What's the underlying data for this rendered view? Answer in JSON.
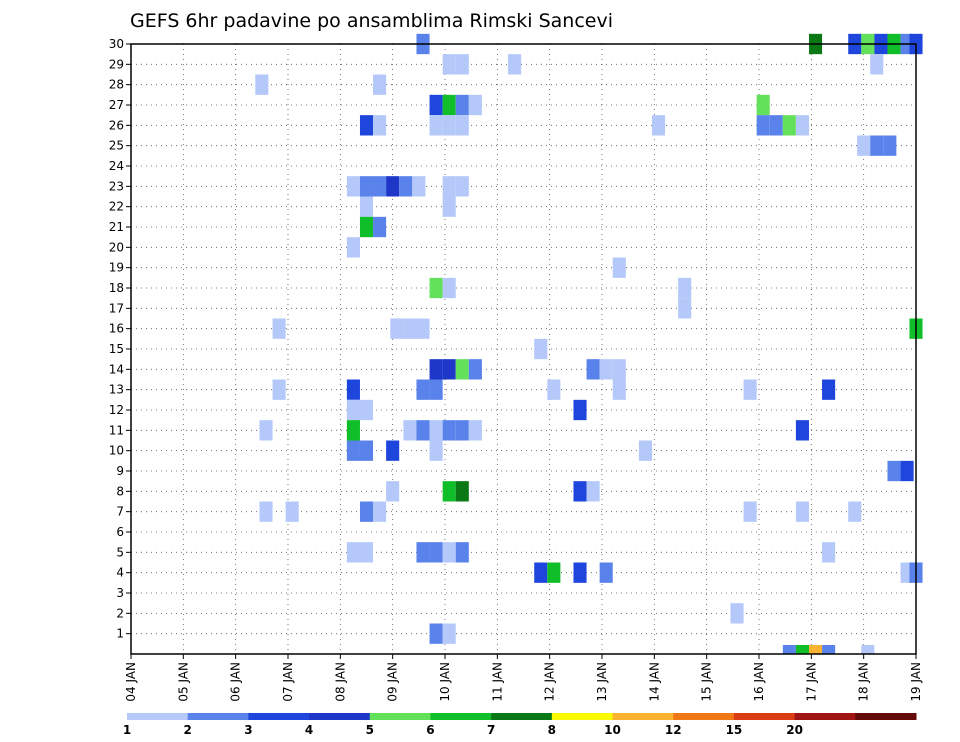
{
  "chart_data": {
    "type": "heatmap",
    "title": "GEFS 6hr padavine po ansamblima Rimski Sancevi",
    "y_ticks": [
      "1",
      "2",
      "3",
      "4",
      "5",
      "6",
      "7",
      "8",
      "9",
      "10",
      "11",
      "12",
      "13",
      "14",
      "15",
      "16",
      "17",
      "18",
      "19",
      "20",
      "21",
      "22",
      "23",
      "24",
      "25",
      "26",
      "27",
      "28",
      "29",
      "30"
    ],
    "x_ticks": [
      "04 JAN",
      "05 JAN",
      "06 JAN",
      "07 JAN",
      "08 JAN",
      "09 JAN",
      "10 JAN",
      "11 JAN",
      "12 JAN",
      "13 JAN",
      "14 JAN",
      "15 JAN",
      "16 JAN",
      "17 JAN",
      "18 JAN",
      "19 JAN"
    ],
    "x_range_days": [
      4,
      19
    ],
    "y_range": [
      0,
      30
    ],
    "grid": true,
    "colorbar": {
      "ticks": [
        "1",
        "2",
        "3",
        "4",
        "5",
        "6",
        "7",
        "8",
        "10",
        "12",
        "15",
        "20"
      ],
      "colors": [
        "#b4c8fa",
        "#5a82eb",
        "#1e46dc",
        "#1e37c8",
        "#64e15a",
        "#0fbe28",
        "#0a7814",
        "#fafa00",
        "#fab432",
        "#f07814",
        "#dc3c14",
        "#a01414",
        "#640a0a"
      ]
    },
    "cells": [
      {
        "day": 9.58,
        "member": 30,
        "level": 2
      },
      {
        "day": 17.83,
        "member": 30,
        "level": 3
      },
      {
        "day": 17.08,
        "member": 30,
        "level": 7
      },
      {
        "day": 18.08,
        "member": 30,
        "level": 5
      },
      {
        "day": 18.33,
        "member": 30,
        "level": 3
      },
      {
        "day": 18.58,
        "member": 30,
        "level": 6
      },
      {
        "day": 18.83,
        "member": 30,
        "level": 2
      },
      {
        "day": 19.0,
        "member": 30,
        "level": 3
      },
      {
        "day": 10.08,
        "member": 29,
        "level": 1
      },
      {
        "day": 10.33,
        "member": 29,
        "level": 1
      },
      {
        "day": 11.33,
        "member": 29,
        "level": 1
      },
      {
        "day": 18.25,
        "member": 29,
        "level": 1
      },
      {
        "day": 6.5,
        "member": 28,
        "level": 1
      },
      {
        "day": 8.75,
        "member": 28,
        "level": 1
      },
      {
        "day": 9.83,
        "member": 27,
        "level": 3
      },
      {
        "day": 10.08,
        "member": 27,
        "level": 6
      },
      {
        "day": 10.33,
        "member": 27,
        "level": 2
      },
      {
        "day": 10.58,
        "member": 27,
        "level": 1
      },
      {
        "day": 16.08,
        "member": 27,
        "level": 5
      },
      {
        "day": 8.5,
        "member": 26,
        "level": 3
      },
      {
        "day": 8.75,
        "member": 26,
        "level": 1
      },
      {
        "day": 9.83,
        "member": 26,
        "level": 1
      },
      {
        "day": 10.08,
        "member": 26,
        "level": 1
      },
      {
        "day": 10.33,
        "member": 26,
        "level": 1
      },
      {
        "day": 14.08,
        "member": 26,
        "level": 1
      },
      {
        "day": 16.08,
        "member": 26,
        "level": 2
      },
      {
        "day": 16.33,
        "member": 26,
        "level": 2
      },
      {
        "day": 16.58,
        "member": 26,
        "level": 5
      },
      {
        "day": 16.83,
        "member": 26,
        "level": 1
      },
      {
        "day": 18.0,
        "member": 25,
        "level": 1
      },
      {
        "day": 18.25,
        "member": 25,
        "level": 2
      },
      {
        "day": 18.5,
        "member": 25,
        "level": 2
      },
      {
        "day": 8.25,
        "member": 23,
        "level": 1
      },
      {
        "day": 8.5,
        "member": 23,
        "level": 2
      },
      {
        "day": 8.75,
        "member": 23,
        "level": 2
      },
      {
        "day": 9.0,
        "member": 23,
        "level": 4
      },
      {
        "day": 9.25,
        "member": 23,
        "level": 2
      },
      {
        "day": 9.5,
        "member": 23,
        "level": 1
      },
      {
        "day": 10.08,
        "member": 23,
        "level": 1
      },
      {
        "day": 10.33,
        "member": 23,
        "level": 1
      },
      {
        "day": 8.5,
        "member": 22,
        "level": 1
      },
      {
        "day": 10.08,
        "member": 22,
        "level": 1
      },
      {
        "day": 8.5,
        "member": 21,
        "level": 6
      },
      {
        "day": 8.75,
        "member": 21,
        "level": 2
      },
      {
        "day": 8.25,
        "member": 20,
        "level": 1
      },
      {
        "day": 13.33,
        "member": 19,
        "level": 1
      },
      {
        "day": 9.83,
        "member": 18,
        "level": 5
      },
      {
        "day": 10.08,
        "member": 18,
        "level": 1
      },
      {
        "day": 14.58,
        "member": 18,
        "level": 1
      },
      {
        "day": 14.58,
        "member": 17,
        "level": 1
      },
      {
        "day": 6.83,
        "member": 16,
        "level": 1
      },
      {
        "day": 9.08,
        "member": 16,
        "level": 1
      },
      {
        "day": 9.33,
        "member": 16,
        "level": 1
      },
      {
        "day": 9.58,
        "member": 16,
        "level": 1
      },
      {
        "day": 19.0,
        "member": 16,
        "level": 6
      },
      {
        "day": 11.83,
        "member": 15,
        "level": 1
      },
      {
        "day": 9.83,
        "member": 14,
        "level": 4
      },
      {
        "day": 10.08,
        "member": 14,
        "level": 4
      },
      {
        "day": 10.33,
        "member": 14,
        "level": 5
      },
      {
        "day": 10.58,
        "member": 14,
        "level": 2
      },
      {
        "day": 12.83,
        "member": 14,
        "level": 2
      },
      {
        "day": 13.08,
        "member": 14,
        "level": 1
      },
      {
        "day": 13.33,
        "member": 14,
        "level": 1
      },
      {
        "day": 6.83,
        "member": 13,
        "level": 1
      },
      {
        "day": 8.25,
        "member": 13,
        "level": 3
      },
      {
        "day": 9.58,
        "member": 13,
        "level": 2
      },
      {
        "day": 9.83,
        "member": 13,
        "level": 2
      },
      {
        "day": 12.08,
        "member": 13,
        "level": 1
      },
      {
        "day": 13.33,
        "member": 13,
        "level": 1
      },
      {
        "day": 15.83,
        "member": 13,
        "level": 1
      },
      {
        "day": 17.33,
        "member": 13,
        "level": 3
      },
      {
        "day": 8.25,
        "member": 12,
        "level": 1
      },
      {
        "day": 8.5,
        "member": 12,
        "level": 1
      },
      {
        "day": 12.58,
        "member": 12,
        "level": 3
      },
      {
        "day": 6.58,
        "member": 11,
        "level": 1
      },
      {
        "day": 8.25,
        "member": 11,
        "level": 6
      },
      {
        "day": 9.33,
        "member": 11,
        "level": 1
      },
      {
        "day": 9.58,
        "member": 11,
        "level": 2
      },
      {
        "day": 9.83,
        "member": 11,
        "level": 1
      },
      {
        "day": 10.08,
        "member": 11,
        "level": 2
      },
      {
        "day": 10.33,
        "member": 11,
        "level": 2
      },
      {
        "day": 10.58,
        "member": 11,
        "level": 1
      },
      {
        "day": 16.83,
        "member": 11,
        "level": 3
      },
      {
        "day": 8.25,
        "member": 10,
        "level": 2
      },
      {
        "day": 8.5,
        "member": 10,
        "level": 2
      },
      {
        "day": 9.0,
        "member": 10,
        "level": 3
      },
      {
        "day": 9.83,
        "member": 10,
        "level": 1
      },
      {
        "day": 13.83,
        "member": 10,
        "level": 1
      },
      {
        "day": 18.58,
        "member": 9,
        "level": 2
      },
      {
        "day": 18.83,
        "member": 9,
        "level": 3
      },
      {
        "day": 9.0,
        "member": 8,
        "level": 1
      },
      {
        "day": 10.08,
        "member": 8,
        "level": 6
      },
      {
        "day": 10.33,
        "member": 8,
        "level": 7
      },
      {
        "day": 12.58,
        "member": 8,
        "level": 3
      },
      {
        "day": 12.83,
        "member": 8,
        "level": 1
      },
      {
        "day": 6.58,
        "member": 7,
        "level": 1
      },
      {
        "day": 7.08,
        "member": 7,
        "level": 1
      },
      {
        "day": 8.5,
        "member": 7,
        "level": 2
      },
      {
        "day": 8.75,
        "member": 7,
        "level": 1
      },
      {
        "day": 15.83,
        "member": 7,
        "level": 1
      },
      {
        "day": 16.83,
        "member": 7,
        "level": 1
      },
      {
        "day": 17.83,
        "member": 7,
        "level": 1
      },
      {
        "day": 8.25,
        "member": 5,
        "level": 1
      },
      {
        "day": 8.5,
        "member": 5,
        "level": 1
      },
      {
        "day": 9.58,
        "member": 5,
        "level": 2
      },
      {
        "day": 9.83,
        "member": 5,
        "level": 2
      },
      {
        "day": 10.08,
        "member": 5,
        "level": 1
      },
      {
        "day": 10.33,
        "member": 5,
        "level": 2
      },
      {
        "day": 17.33,
        "member": 5,
        "level": 1
      },
      {
        "day": 11.83,
        "member": 4,
        "level": 3
      },
      {
        "day": 12.08,
        "member": 4,
        "level": 6
      },
      {
        "day": 12.58,
        "member": 4,
        "level": 3
      },
      {
        "day": 13.08,
        "member": 4,
        "level": 2
      },
      {
        "day": 18.83,
        "member": 4,
        "level": 1
      },
      {
        "day": 19.0,
        "member": 4,
        "level": 2
      },
      {
        "day": 15.58,
        "member": 2,
        "level": 1
      },
      {
        "day": 9.83,
        "member": 1,
        "level": 2
      },
      {
        "day": 10.08,
        "member": 1,
        "level": 1
      },
      {
        "day": 16.58,
        "member": 0,
        "level": 2
      },
      {
        "day": 16.83,
        "member": 0,
        "level": 6
      },
      {
        "day": 17.08,
        "member": 0,
        "level": 9
      },
      {
        "day": 17.33,
        "member": 0,
        "level": 2
      },
      {
        "day": 18.08,
        "member": 0,
        "level": 1
      }
    ]
  }
}
